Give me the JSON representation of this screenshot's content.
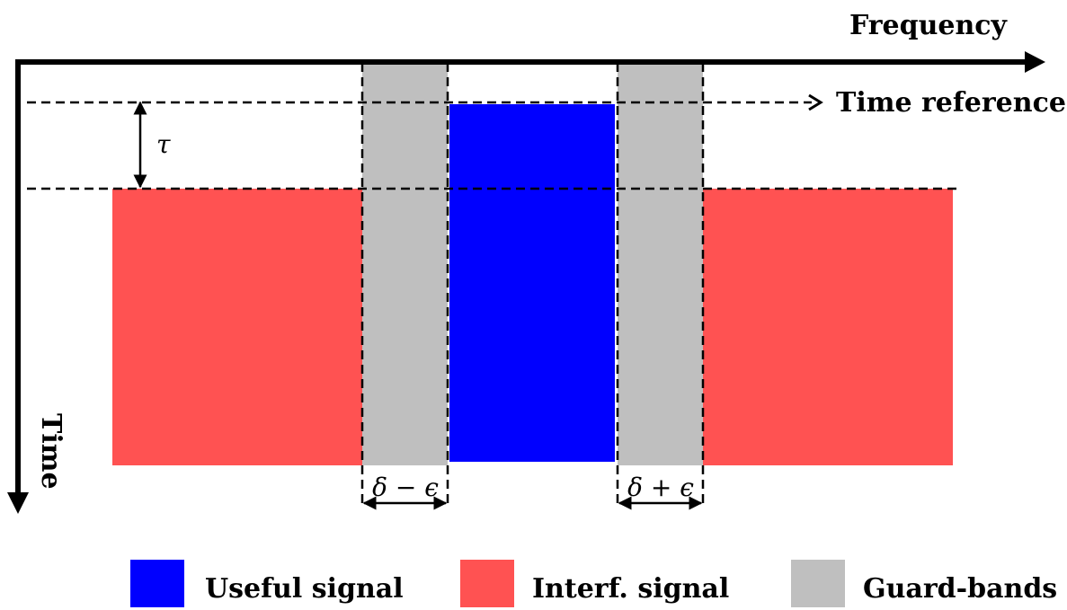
{
  "diagram": {
    "axes": {
      "frequency_label": "Frequency",
      "time_label": "Time",
      "time_reference_label": "Time reference"
    },
    "annotations": {
      "tau": "τ",
      "left_guard_width": "δ − ϵ",
      "right_guard_width": "δ + ϵ"
    },
    "legend": [
      {
        "label": "Useful signal",
        "color": "#0000ff"
      },
      {
        "label": "Interf. signal",
        "color": "#ff5252"
      },
      {
        "label": "Guard-bands",
        "color": "#bfbfbf"
      }
    ],
    "colors": {
      "useful": "#0000ff",
      "interference": "#ff5252",
      "guard": "#bfbfbf",
      "axis": "#000000"
    }
  }
}
